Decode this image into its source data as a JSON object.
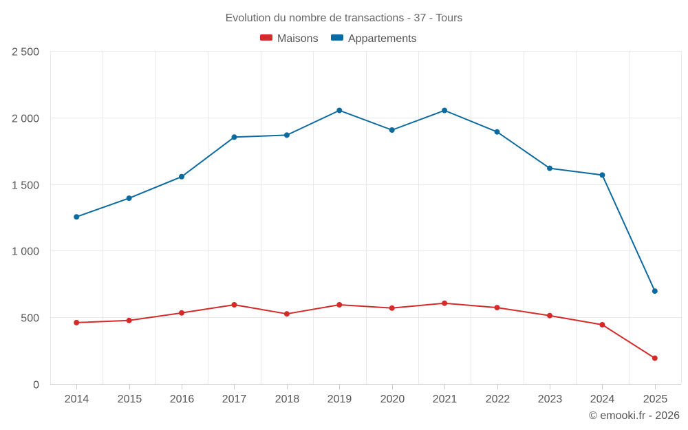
{
  "chart_data": {
    "type": "line",
    "title": "Evolution du nombre de transactions - 37 - Tours",
    "categories": [
      "2014",
      "2015",
      "2016",
      "2017",
      "2018",
      "2019",
      "2020",
      "2021",
      "2022",
      "2023",
      "2024",
      "2025"
    ],
    "series": [
      {
        "name": "Maisons",
        "color": "#d42a2a",
        "values": [
          460,
          476,
          533,
          594,
          526,
          594,
          569,
          606,
          573,
          513,
          444,
          193
        ]
      },
      {
        "name": "Appartements",
        "color": "#0b6aa0",
        "values": [
          1254,
          1394,
          1556,
          1853,
          1868,
          2053,
          1906,
          2053,
          1892,
          1619,
          1568,
          697
        ]
      }
    ],
    "y_ticks": [
      {
        "value": 0,
        "label": "0"
      },
      {
        "value": 500,
        "label": "500"
      },
      {
        "value": 1000,
        "label": "1 000"
      },
      {
        "value": 1500,
        "label": "1 500"
      },
      {
        "value": 2000,
        "label": "2 000"
      },
      {
        "value": 2500,
        "label": "2 500"
      }
    ],
    "ylim": [
      0,
      2500
    ],
    "xlabel": "",
    "ylabel": "",
    "legend_position": "top-center",
    "grid": true
  },
  "credit": "© emooki.fr - 2026"
}
